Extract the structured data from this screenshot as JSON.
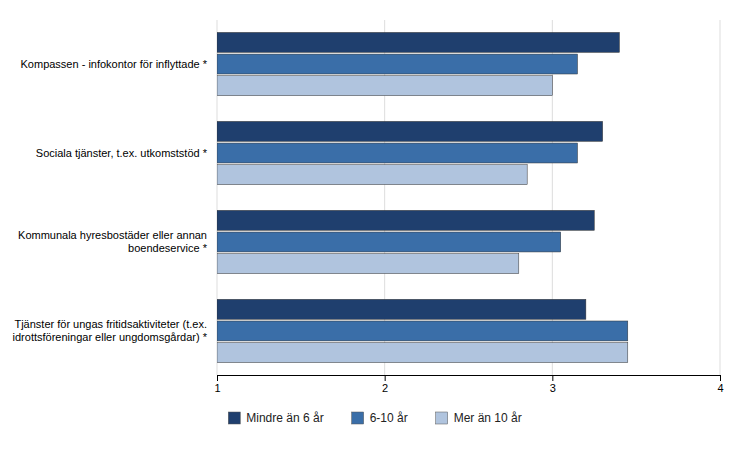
{
  "chart_data": {
    "type": "bar",
    "orientation": "horizontal",
    "categories": [
      "Kompassen - infokontor för inflyttade  *",
      "Sociala tjänster, t.ex. utkomststöd *",
      "Kommunala hyresbostäder eller annan\nboendeservice *",
      "Tjänster för ungas fritidsaktiviteter (t.ex.\nidrottsföreningar eller ungdomsgårdar) *"
    ],
    "series": [
      {
        "name": "Mindre än 6 år",
        "color": "#1f3f6e",
        "values": [
          3.4,
          3.3,
          3.25,
          3.2
        ]
      },
      {
        "name": "6-10 år",
        "color": "#3a6ea8",
        "values": [
          3.15,
          3.15,
          3.05,
          3.45
        ]
      },
      {
        "name": "Mer än 10 år",
        "color": "#b0c4de",
        "values": [
          3.0,
          2.85,
          2.8,
          3.45
        ]
      }
    ],
    "xlim": [
      1,
      4
    ],
    "xticks": [
      1,
      2,
      3,
      4
    ],
    "grid": true,
    "legend": "bottom"
  }
}
